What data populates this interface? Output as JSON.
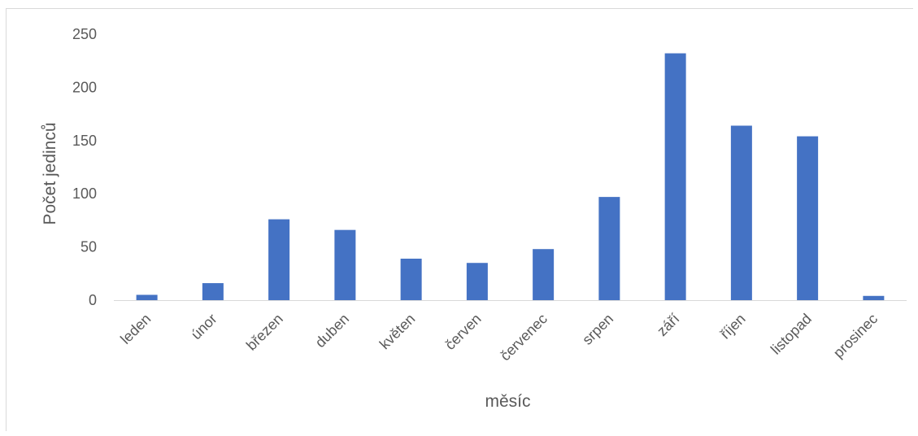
{
  "chart_data": {
    "type": "bar",
    "title": "",
    "xlabel": "měsíc",
    "ylabel": "Počet jedinců",
    "ylim": [
      0,
      250
    ],
    "yticks": [
      0,
      50,
      100,
      150,
      200,
      250
    ],
    "grid": false,
    "legend": "none",
    "categories": [
      "leden",
      "únor",
      "březen",
      "duben",
      "květen",
      "červen",
      "červenec",
      "srpen",
      "září",
      "říjen",
      "listopad",
      "prosinec"
    ],
    "series": [
      {
        "values": [
          5,
          16,
          76,
          66,
          39,
          35,
          48,
          97,
          232,
          164,
          154,
          4
        ]
      }
    ],
    "colors": {
      "bar": "#4472C4",
      "axis": "#d9d9d9",
      "text": "#595959"
    }
  }
}
